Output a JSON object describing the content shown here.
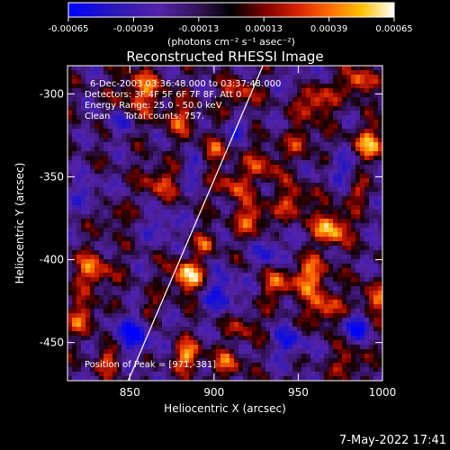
{
  "colorbar": {
    "tick_labels": [
      "-0.00065",
      "-0.00039",
      "-0.00013",
      "0.00013",
      "0.00039",
      "0.00065"
    ],
    "ticks": [
      -0.00065,
      -0.00039,
      -0.00013,
      0.00013,
      0.00039,
      0.00065
    ],
    "range": [
      -0.00065,
      0.00065
    ],
    "units_label": "(photons cm⁻² s⁻¹ asec⁻²)"
  },
  "chart_data": {
    "type": "heatmap",
    "title": "Reconstructed RHESSI Image",
    "xlabel": "Heliocentric X (arcsec)",
    "ylabel": "Heliocentric Y (arcsec)",
    "xlim": [
      813,
      1000
    ],
    "ylim": [
      -473,
      -283
    ],
    "x_ticks": [
      850,
      900,
      950,
      1000
    ],
    "x_tick_labels": [
      "850",
      "900",
      "950",
      "1000"
    ],
    "y_ticks": [
      -300,
      -350,
      -400,
      -450
    ],
    "y_tick_labels": [
      "-300",
      "-350",
      "-400",
      "-450"
    ],
    "info_lines": [
      "6-Dec-2003 03:36:48.000 to 03:37:48.000",
      "Detectors: 3F 4F 5F 6F 7F 8F, Att 0",
      "Energy Range: 25.0 - 50.0 keV",
      "Clean     Total counts: 757."
    ],
    "peak_label": "Position of Peak = [971,-381]",
    "peak": [
      971,
      -381
    ],
    "limb_line": [
      [
        849,
        -473
      ],
      [
        929,
        -283
      ]
    ],
    "sources": [
      {
        "x": 884,
        "y": -410,
        "r": 7,
        "a": 1.0
      },
      {
        "x": 970,
        "y": -381,
        "r": 7,
        "a": 1.0
      },
      {
        "x": 884,
        "y": -458,
        "r": 6,
        "a": 0.85
      },
      {
        "x": 828,
        "y": -407,
        "r": 8,
        "a": 0.7
      },
      {
        "x": 822,
        "y": -435,
        "r": 7,
        "a": 0.6
      },
      {
        "x": 838,
        "y": -460,
        "r": 6,
        "a": 0.6
      },
      {
        "x": 857,
        "y": -298,
        "r": 9,
        "a": 0.7
      },
      {
        "x": 880,
        "y": -315,
        "r": 7,
        "a": 0.55
      },
      {
        "x": 915,
        "y": -300,
        "r": 7,
        "a": 0.55
      },
      {
        "x": 900,
        "y": -335,
        "r": 6,
        "a": 0.5
      },
      {
        "x": 868,
        "y": -353,
        "r": 7,
        "a": 0.6
      },
      {
        "x": 930,
        "y": -343,
        "r": 8,
        "a": 0.5
      },
      {
        "x": 911,
        "y": -355,
        "r": 7,
        "a": 0.55
      },
      {
        "x": 923,
        "y": -375,
        "r": 7,
        "a": 0.7
      },
      {
        "x": 960,
        "y": -305,
        "r": 7,
        "a": 0.75
      },
      {
        "x": 985,
        "y": -293,
        "r": 6,
        "a": 0.8
      },
      {
        "x": 993,
        "y": -330,
        "r": 7,
        "a": 0.8
      },
      {
        "x": 952,
        "y": -328,
        "r": 6,
        "a": 0.5
      },
      {
        "x": 948,
        "y": -365,
        "r": 7,
        "a": 0.6
      },
      {
        "x": 957,
        "y": -410,
        "r": 8,
        "a": 0.75
      },
      {
        "x": 965,
        "y": -430,
        "r": 7,
        "a": 0.7
      },
      {
        "x": 937,
        "y": -415,
        "r": 7,
        "a": 0.55
      },
      {
        "x": 995,
        "y": -425,
        "r": 7,
        "a": 0.65
      },
      {
        "x": 918,
        "y": -440,
        "r": 6,
        "a": 0.5
      },
      {
        "x": 908,
        "y": -463,
        "r": 6,
        "a": 0.6
      },
      {
        "x": 980,
        "y": -462,
        "r": 6,
        "a": 0.55
      },
      {
        "x": 860,
        "y": -430,
        "r": 5,
        "a": 0.45
      },
      {
        "x": 895,
        "y": -390,
        "r": 5,
        "a": 0.5
      },
      {
        "x": 840,
        "y": -375,
        "r": 5,
        "a": 0.4
      },
      {
        "x": 985,
        "y": -360,
        "r": 5,
        "a": 0.45
      },
      {
        "x": 852,
        "y": -445,
        "r": 9,
        "a": -0.7
      },
      {
        "x": 905,
        "y": -420,
        "r": 8,
        "a": -0.6
      },
      {
        "x": 985,
        "y": -440,
        "r": 6,
        "a": -0.7
      },
      {
        "x": 870,
        "y": -380,
        "r": 6,
        "a": -0.5
      },
      {
        "x": 935,
        "y": -395,
        "r": 7,
        "a": -0.5
      },
      {
        "x": 945,
        "y": -450,
        "r": 7,
        "a": -0.55
      },
      {
        "x": 825,
        "y": -360,
        "r": 6,
        "a": -0.45
      },
      {
        "x": 888,
        "y": -345,
        "r": 5,
        "a": -0.4
      },
      {
        "x": 975,
        "y": -345,
        "r": 6,
        "a": -0.45
      },
      {
        "x": 915,
        "y": -320,
        "r": 5,
        "a": -0.4
      },
      {
        "x": 842,
        "y": -318,
        "r": 5,
        "a": -0.4
      },
      {
        "x": 950,
        "y": -290,
        "r": 5,
        "a": -0.4
      }
    ]
  },
  "footer": {
    "timestamp": "7-May-2022 17:41"
  }
}
